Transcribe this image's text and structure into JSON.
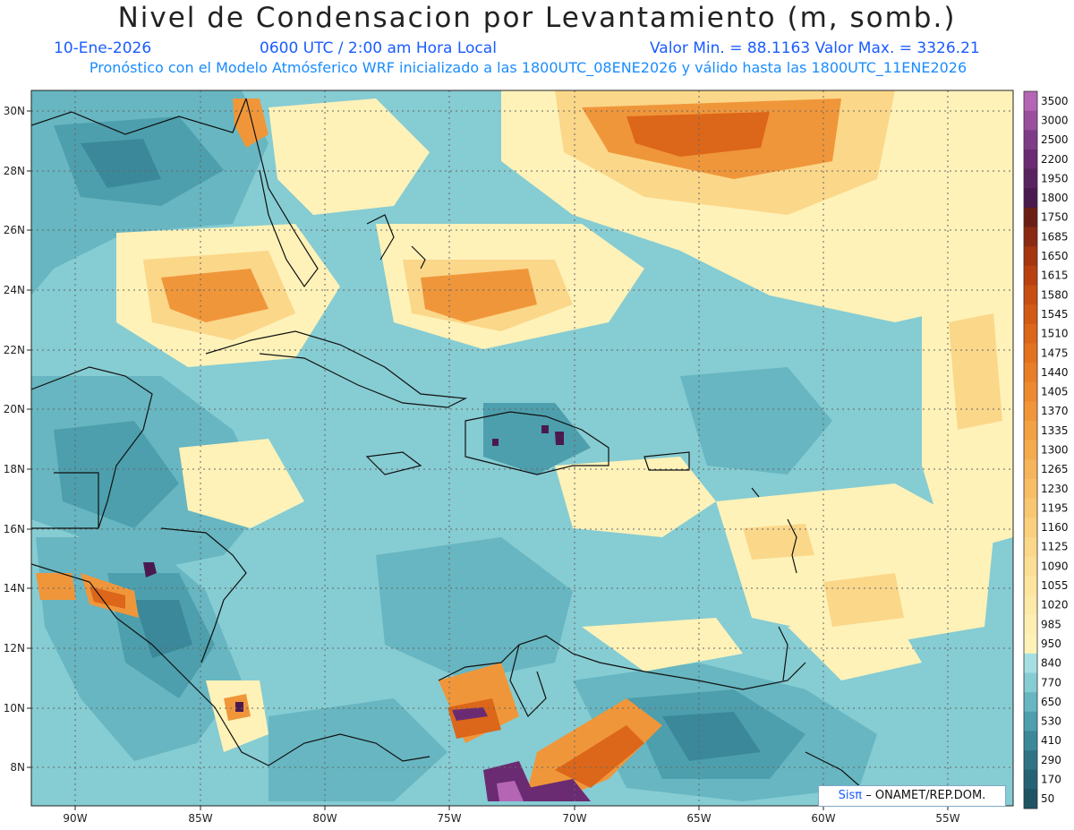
{
  "header": {
    "title": "Nivel de Condensacion por Levantamiento (m, somb.)",
    "date": "10-Ene-2026",
    "time": "0600 UTC / 2:00 am Hora Local",
    "min_max": "Valor Min. = 88.1163  Valor Max. = 3326.21",
    "forecast_note": "Pronóstico con el Modelo Atmósferico WRF inicializado a las 1800UTC_08ENE2026 y válido hasta las  1800UTC_11ENE2026"
  },
  "axes": {
    "lat_labels": [
      "30N",
      "28N",
      "26N",
      "24N",
      "22N",
      "20N",
      "18N",
      "16N",
      "14N",
      "12N",
      "10N",
      "8N"
    ],
    "lon_labels": [
      "90W",
      "85W",
      "80W",
      "75W",
      "70W",
      "65W",
      "60W",
      "55W"
    ]
  },
  "colorbar": {
    "labels": [
      "3500",
      "3000",
      "2500",
      "2200",
      "1950",
      "1800",
      "1750",
      "1685",
      "1650",
      "1615",
      "1580",
      "1545",
      "1510",
      "1475",
      "1440",
      "1405",
      "1370",
      "1335",
      "1300",
      "1265",
      "1230",
      "1195",
      "1160",
      "1125",
      "1090",
      "1055",
      "1020",
      "985",
      "950",
      "840",
      "770",
      "650",
      "530",
      "410",
      "290",
      "170",
      "50"
    ],
    "colors": [
      "#b466b4",
      "#9a4f9d",
      "#7f3c86",
      "#6a2b72",
      "#58235f",
      "#4a1a4f",
      "#6b1e16",
      "#8a2a12",
      "#a5360f",
      "#b9410f",
      "#c84e12",
      "#d35a14",
      "#dc6619",
      "#e3721f",
      "#e97e27",
      "#ed8a2f",
      "#f09638",
      "#f2a143",
      "#f4ab4e",
      "#f6b55a",
      "#f8be66",
      "#f9c772",
      "#facf7e",
      "#fbd78a",
      "#fcde95",
      "#fde49f",
      "#fde9a8",
      "#fdeeb1",
      "#fef2b8",
      "#a6dfe3",
      "#86ccd3",
      "#67b6c1",
      "#4d9fad",
      "#3a8899",
      "#2e7486",
      "#256374",
      "#1d5363"
    ]
  },
  "credit": {
    "brand": "Sisπ",
    "org": "– ONAMET/REP.DOM."
  }
}
